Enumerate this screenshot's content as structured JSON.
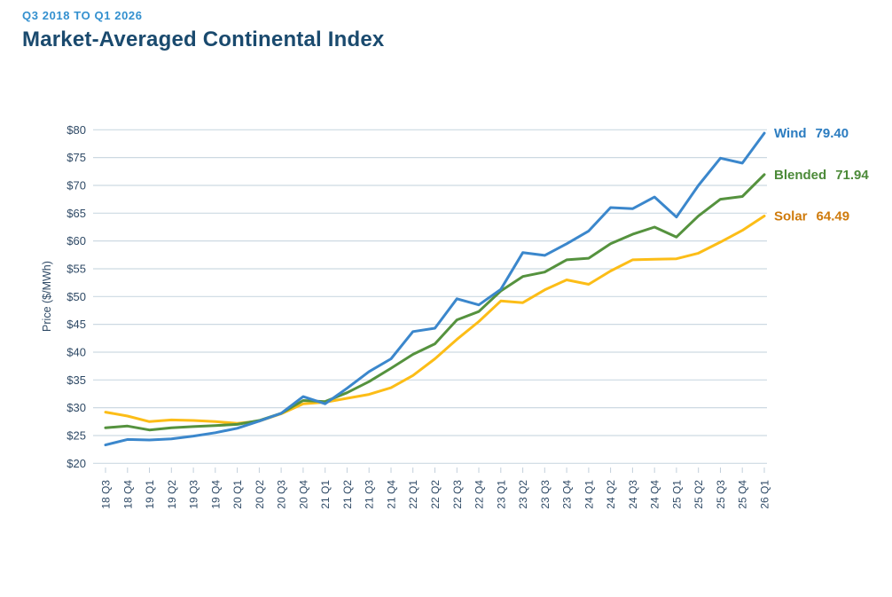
{
  "header": {
    "subtitle": "Q3 2018 TO Q1 2026",
    "title": "Market-Averaged Continental Index"
  },
  "chart_data": {
    "type": "line",
    "title": "Market-Averaged Continental Index",
    "subtitle": "Q3 2018 TO Q1 2026",
    "xlabel": "",
    "ylabel": "Price ($/MWh)",
    "ylim": [
      20,
      80
    ],
    "ytick_step": 5,
    "grid": true,
    "legend_position": "right-of-line-end-labels",
    "y_ticks": [
      {
        "v": 20,
        "label": "$20"
      },
      {
        "v": 25,
        "label": "$25"
      },
      {
        "v": 30,
        "label": "$30"
      },
      {
        "v": 35,
        "label": "$35"
      },
      {
        "v": 40,
        "label": "$40"
      },
      {
        "v": 45,
        "label": "$45"
      },
      {
        "v": 50,
        "label": "$50"
      },
      {
        "v": 55,
        "label": "$55"
      },
      {
        "v": 60,
        "label": "$60"
      },
      {
        "v": 65,
        "label": "$65"
      },
      {
        "v": 70,
        "label": "$70"
      },
      {
        "v": 75,
        "label": "$75"
      },
      {
        "v": 80,
        "label": "$80"
      }
    ],
    "categories": [
      "18 Q3",
      "18 Q4",
      "19 Q1",
      "19 Q2",
      "19 Q3",
      "19 Q4",
      "20 Q1",
      "20 Q2",
      "20 Q3",
      "20 Q4",
      "21 Q1",
      "21 Q2",
      "21 Q3",
      "21 Q4",
      "22 Q1",
      "22 Q2",
      "22 Q3",
      "22 Q4",
      "23 Q1",
      "23 Q2",
      "23 Q3",
      "23 Q4",
      "24 Q1",
      "24 Q2",
      "24 Q3",
      "24 Q4",
      "25 Q1",
      "25 Q2",
      "25 Q3",
      "25 Q4",
      "26 Q1"
    ],
    "series": [
      {
        "name": "Wind",
        "end_label_value": "79.40",
        "color": "#3b87cc",
        "label_color": "#2b7cc0",
        "values": [
          23.3,
          24.3,
          24.2,
          24.4,
          24.9,
          25.5,
          26.3,
          27.6,
          29.0,
          32.0,
          30.7,
          33.5,
          36.5,
          38.8,
          43.7,
          44.3,
          49.6,
          48.5,
          51.3,
          57.9,
          57.4,
          59.5,
          61.8,
          66.0,
          65.8,
          67.9,
          64.3,
          70.0,
          74.9,
          74.0,
          79.4
        ]
      },
      {
        "name": "Blended",
        "end_label_value": "71.94",
        "color": "#55923e",
        "label_color": "#4c8a39",
        "values": [
          26.4,
          26.7,
          26.0,
          26.4,
          26.6,
          26.8,
          27.0,
          27.7,
          29.0,
          31.3,
          31.1,
          32.7,
          34.7,
          37.1,
          39.6,
          41.5,
          45.8,
          47.3,
          51.0,
          53.6,
          54.4,
          56.6,
          56.9,
          59.5,
          61.2,
          62.5,
          60.7,
          64.5,
          67.5,
          68.0,
          71.94
        ]
      },
      {
        "name": "Solar",
        "end_label_value": "64.49",
        "color": "#fcbd17",
        "label_color": "#cf7b0d",
        "values": [
          29.2,
          28.5,
          27.5,
          27.8,
          27.7,
          27.5,
          27.2,
          27.6,
          28.9,
          30.7,
          31.0,
          31.7,
          32.4,
          33.6,
          35.8,
          38.8,
          42.3,
          45.5,
          49.2,
          48.9,
          51.2,
          53.0,
          52.2,
          54.6,
          56.6,
          56.7,
          56.8,
          57.8,
          59.8,
          61.9,
          64.49
        ]
      }
    ],
    "colors": {
      "grid": "#cdd9e2",
      "tick": "#c2cfdb",
      "axis_text": "#2f4a66"
    }
  }
}
